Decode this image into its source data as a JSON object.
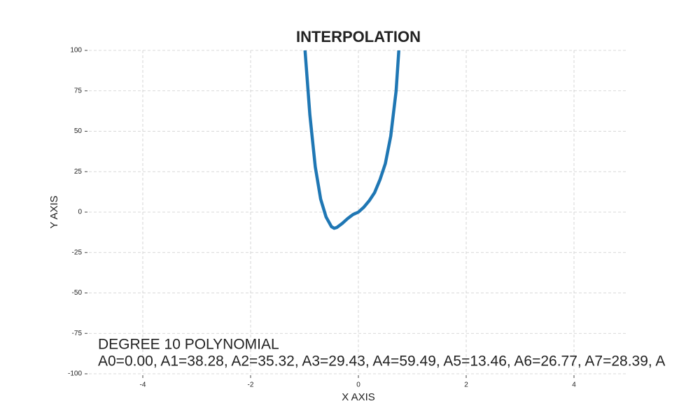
{
  "chart_data": {
    "type": "line",
    "title": "INTERPOLATION",
    "x_label": "X AXIS",
    "y_label": "Y AXIS",
    "annotations": [
      "DEGREE 10 POLYNOMIAL",
      "A0=0.00, A1=38.28, A2=35.32, A3=29.43, A4=59.49, A5=13.46, A6=26.77, A7=28.39, A"
    ],
    "x": [
      -0.99,
      -0.9,
      -0.8,
      -0.7,
      -0.6,
      -0.5,
      -0.45,
      -0.4,
      -0.3,
      -0.2,
      -0.1,
      0,
      0.1,
      0.2,
      0.3,
      0.4,
      0.5,
      0.6,
      0.7,
      0.75
    ],
    "series": [
      {
        "color": "#1f77b4",
        "values": [
          100,
          60,
          28,
          8,
          -3,
          -9,
          -10,
          -9.5,
          -7,
          -4,
          -1.5,
          0,
          3,
          7,
          12,
          20,
          30,
          47,
          75,
          100
        ]
      }
    ],
    "xlim": [
      -5,
      5
    ],
    "ylim": [
      -100,
      100
    ],
    "xticks": [
      -4,
      -2,
      0,
      2,
      4
    ],
    "yticks": [
      -100,
      -75,
      -50,
      -25,
      0,
      25,
      50,
      75,
      100
    ],
    "grid": true
  }
}
